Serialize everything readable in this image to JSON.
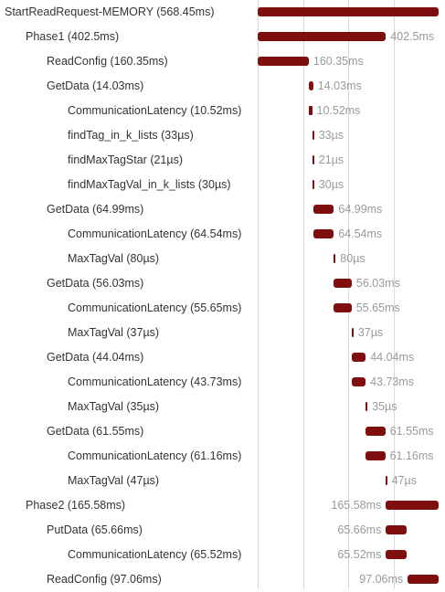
{
  "timeline": {
    "total_ms": 568.45,
    "bar_color": "#7f0f0f"
  },
  "spans": [
    {
      "name": "StartReadRequest-MEMORY (568.45ms)",
      "depth": 0,
      "start_ms": 0,
      "duration_ms": 568.45,
      "duration_label": ""
    },
    {
      "name": "Phase1 (402.5ms)",
      "depth": 1,
      "start_ms": 0,
      "duration_ms": 402.5,
      "duration_label": "402.5ms"
    },
    {
      "name": "ReadConfig (160.35ms)",
      "depth": 2,
      "start_ms": 0,
      "duration_ms": 160.35,
      "duration_label": "160.35ms"
    },
    {
      "name": "GetData (14.03ms)",
      "depth": 2,
      "start_ms": 160.4,
      "duration_ms": 14.03,
      "duration_label": "14.03ms"
    },
    {
      "name": "CommunicationLatency (10.52ms)",
      "depth": 3,
      "start_ms": 160.4,
      "duration_ms": 10.52,
      "duration_label": "10.52ms"
    },
    {
      "name": "findTag_in_k_lists (33µs)",
      "depth": 3,
      "start_ms": 171.5,
      "duration_ms": 0.033,
      "duration_label": "33µs"
    },
    {
      "name": "findMaxTagStar (21µs)",
      "depth": 3,
      "start_ms": 171.6,
      "duration_ms": 0.021,
      "duration_label": "21µs"
    },
    {
      "name": "findMaxTagVal_in_k_lists (30µs)",
      "depth": 3,
      "start_ms": 171.6,
      "duration_ms": 0.03,
      "duration_label": "30µs"
    },
    {
      "name": "GetData (64.99ms)",
      "depth": 2,
      "start_ms": 174.4,
      "duration_ms": 64.99,
      "duration_label": "64.99ms"
    },
    {
      "name": "CommunicationLatency (64.54ms)",
      "depth": 3,
      "start_ms": 174.4,
      "duration_ms": 64.54,
      "duration_label": "64.54ms"
    },
    {
      "name": "MaxTagVal (80µs)",
      "depth": 3,
      "start_ms": 239.2,
      "duration_ms": 0.08,
      "duration_label": "80µs"
    },
    {
      "name": "GetData (56.03ms)",
      "depth": 2,
      "start_ms": 239.4,
      "duration_ms": 56.03,
      "duration_label": "56.03ms"
    },
    {
      "name": "CommunicationLatency (55.65ms)",
      "depth": 3,
      "start_ms": 239.4,
      "duration_ms": 55.65,
      "duration_label": "55.65ms"
    },
    {
      "name": "MaxTagVal (37µs)",
      "depth": 3,
      "start_ms": 295.1,
      "duration_ms": 0.037,
      "duration_label": "37µs"
    },
    {
      "name": "GetData (44.04ms)",
      "depth": 2,
      "start_ms": 295.4,
      "duration_ms": 44.04,
      "duration_label": "44.04ms"
    },
    {
      "name": "CommunicationLatency (43.73ms)",
      "depth": 3,
      "start_ms": 295.4,
      "duration_ms": 43.73,
      "duration_label": "43.73ms"
    },
    {
      "name": "MaxTagVal (35µs)",
      "depth": 3,
      "start_ms": 339.2,
      "duration_ms": 0.035,
      "duration_label": "35µs"
    },
    {
      "name": "GetData (61.55ms)",
      "depth": 2,
      "start_ms": 339.5,
      "duration_ms": 61.55,
      "duration_label": "61.55ms"
    },
    {
      "name": "CommunicationLatency (61.16ms)",
      "depth": 3,
      "start_ms": 339.5,
      "duration_ms": 61.16,
      "duration_label": "61.16ms"
    },
    {
      "name": "MaxTagVal (47µs)",
      "depth": 3,
      "start_ms": 400.7,
      "duration_ms": 0.047,
      "duration_label": "47µs"
    },
    {
      "name": "Phase2 (165.58ms)",
      "depth": 1,
      "start_ms": 402.87,
      "duration_ms": 165.58,
      "duration_label": "165.58ms"
    },
    {
      "name": "PutData (65.66ms)",
      "depth": 2,
      "start_ms": 402.87,
      "duration_ms": 65.66,
      "duration_label": "65.66ms"
    },
    {
      "name": "CommunicationLatency (65.52ms)",
      "depth": 3,
      "start_ms": 402.87,
      "duration_ms": 65.52,
      "duration_label": "65.52ms"
    },
    {
      "name": "ReadConfig (97.06ms)",
      "depth": 2,
      "start_ms": 471.39,
      "duration_ms": 97.06,
      "duration_label": "97.06ms"
    }
  ]
}
